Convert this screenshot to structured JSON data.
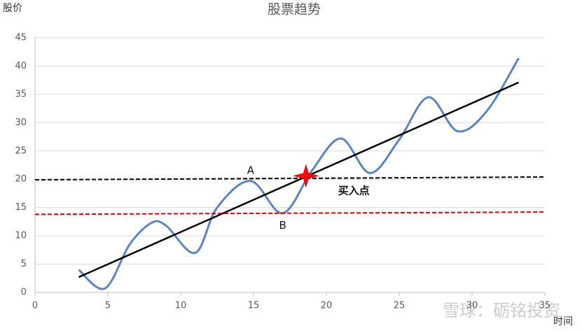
{
  "chart_data": {
    "type": "line",
    "title": "股票趋势",
    "y_label": "股价",
    "x_label": "时间",
    "xlim": [
      0,
      35
    ],
    "xticks": [
      0,
      5,
      10,
      15,
      20,
      25,
      30,
      35
    ],
    "ylim": [
      0,
      45
    ],
    "yticks": [
      0,
      5,
      10,
      15,
      20,
      25,
      30,
      35,
      40,
      45
    ],
    "grid": true,
    "series": [
      {
        "color": "#5b84c0",
        "smooth": true,
        "x": [
          3,
          4.8,
          6.5,
          8,
          9,
          11,
          12.5,
          14.8,
          17,
          19,
          21,
          23,
          25,
          27,
          29,
          31,
          33.2
        ],
        "values": [
          4,
          0.7,
          8.5,
          12.3,
          11.8,
          7,
          15,
          19.7,
          14,
          21.5,
          27.2,
          21.1,
          27,
          34.5,
          28.5,
          32,
          41.4
        ]
      },
      {
        "color": "#000000",
        "x": [
          3,
          33.2
        ],
        "values": [
          2.7,
          37.1
        ]
      },
      {
        "color": "#000000",
        "dash": true,
        "x": [
          0,
          35
        ],
        "values": [
          19.9,
          20.4
        ]
      },
      {
        "color": "#e00000",
        "dash": true,
        "x": [
          0,
          35
        ],
        "values": [
          13.8,
          14.2
        ]
      }
    ],
    "marker": {
      "x": 18.6,
      "y": 20.6,
      "color": "#e81010"
    },
    "annotations": [
      {
        "text": "A",
        "x": 14.8,
        "y": 21.5
      },
      {
        "text": "B",
        "x": 17,
        "y": 11.8
      },
      {
        "text": "买入点",
        "x": 20.8,
        "y": 17.9,
        "bold": true
      }
    ],
    "watermark": "雪球：砺铭投资"
  }
}
